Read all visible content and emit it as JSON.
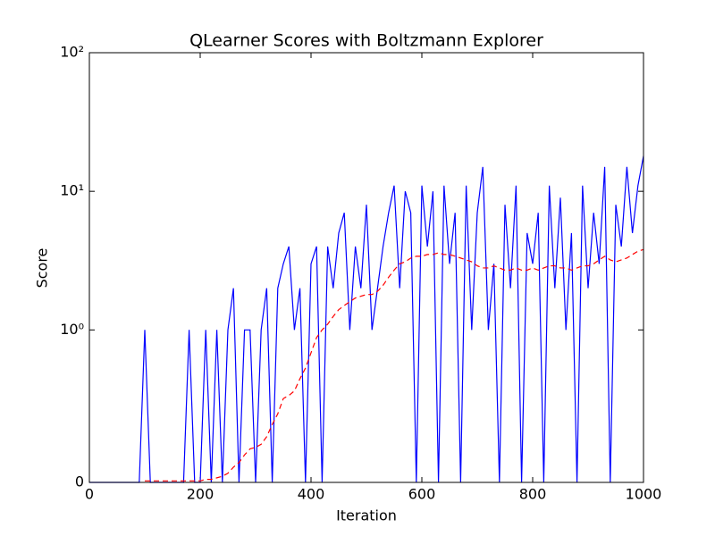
{
  "chart_data": {
    "type": "line",
    "title": "QLearner Scores with Boltzmann Explorer",
    "x_label": "Iteration",
    "y_label": "Score",
    "yscale": "symlog",
    "x": [
      0,
      10,
      20,
      30,
      40,
      50,
      60,
      70,
      80,
      90,
      100,
      110,
      120,
      130,
      140,
      150,
      160,
      170,
      180,
      190,
      200,
      210,
      220,
      230,
      240,
      250,
      260,
      270,
      280,
      290,
      300,
      310,
      320,
      330,
      340,
      350,
      360,
      370,
      380,
      390,
      400,
      410,
      420,
      430,
      440,
      450,
      460,
      470,
      480,
      490,
      500,
      510,
      520,
      530,
      540,
      550,
      560,
      570,
      580,
      590,
      600,
      610,
      620,
      630,
      640,
      650,
      660,
      670,
      680,
      690,
      700,
      710,
      720,
      730,
      740,
      750,
      760,
      770,
      780,
      790,
      800,
      810,
      820,
      830,
      840,
      850,
      860,
      870,
      880,
      890,
      900,
      910,
      920,
      930,
      940,
      950,
      960,
      970,
      980,
      990,
      1000
    ],
    "series": [
      {
        "color": "#0000ff",
        "style": "solid",
        "values": [
          0,
          0,
          0,
          0,
          0,
          0,
          0,
          0,
          0,
          0,
          1,
          0,
          0,
          0,
          0,
          0,
          0,
          0,
          1,
          0,
          0,
          1,
          0,
          1,
          0,
          1,
          2,
          0,
          1,
          1,
          0,
          1,
          2,
          0,
          2,
          3,
          4,
          1,
          2,
          0,
          3,
          4,
          0,
          4,
          2,
          5,
          7,
          1,
          4,
          2,
          8,
          1,
          2,
          4,
          7,
          11,
          2,
          10,
          7,
          0,
          11,
          4,
          10,
          0,
          11,
          3,
          7,
          0,
          11,
          1,
          7,
          15,
          1,
          3,
          0,
          8,
          2,
          11,
          0,
          5,
          3,
          7,
          0,
          11,
          2,
          9,
          1,
          5,
          0,
          11,
          2,
          7,
          3,
          15,
          0,
          8,
          4,
          15,
          5,
          11,
          18
        ]
      },
      {
        "color": "#ff0000",
        "style": "dashed",
        "values": [
          null,
          null,
          null,
          null,
          null,
          null,
          null,
          null,
          null,
          null,
          0.01,
          0.01,
          0.01,
          0.01,
          0.01,
          0.01,
          0.01,
          0.01,
          0.01,
          0.01,
          0.01,
          0.02,
          0.02,
          0.03,
          0.04,
          0.06,
          0.1,
          0.13,
          0.18,
          0.22,
          0.23,
          0.25,
          0.3,
          0.38,
          0.45,
          0.55,
          0.57,
          0.6,
          0.68,
          0.75,
          0.85,
          0.95,
          1,
          1.1,
          1.25,
          1.4,
          1.5,
          1.6,
          1.7,
          1.75,
          1.8,
          1.8,
          1.9,
          2.1,
          2.4,
          2.7,
          3.0,
          3.1,
          3.3,
          3.4,
          3.4,
          3.5,
          3.5,
          3.6,
          3.5,
          3.5,
          3.4,
          3.3,
          3.2,
          3.1,
          2.9,
          2.8,
          2.8,
          2.9,
          2.8,
          2.7,
          2.7,
          2.8,
          2.7,
          2.7,
          2.8,
          2.7,
          2.8,
          2.9,
          2.9,
          2.8,
          2.8,
          2.7,
          2.8,
          2.9,
          2.9,
          3.0,
          3.2,
          3.4,
          3.2,
          3.1,
          3.2,
          3.3,
          3.5,
          3.7,
          3.8
        ]
      }
    ],
    "xlim": [
      0,
      1000
    ],
    "xticks": [
      0,
      200,
      400,
      600,
      800,
      1000
    ],
    "ylim": [
      0,
      100
    ],
    "yticks": [
      0,
      {
        "value": 1,
        "label": "10⁰"
      },
      {
        "value": 10,
        "label": "10¹"
      },
      {
        "value": 100,
        "label": "10²"
      }
    ]
  }
}
